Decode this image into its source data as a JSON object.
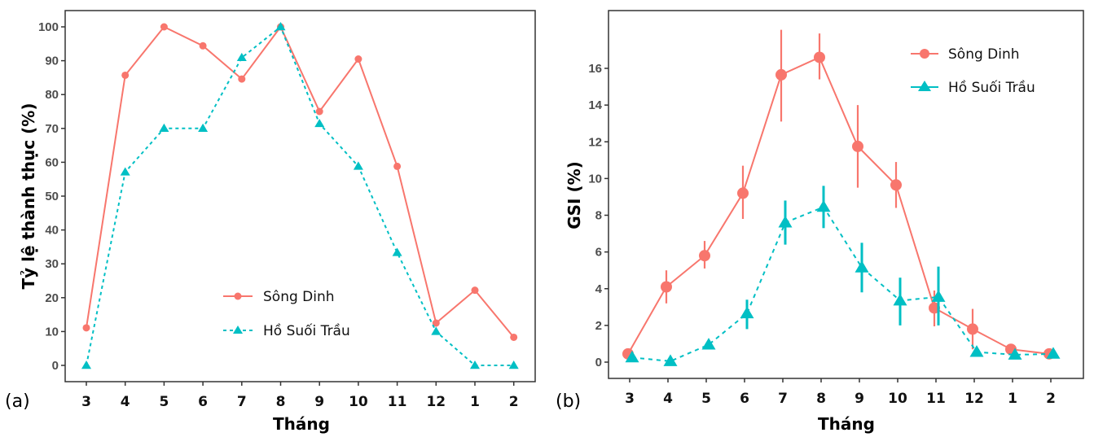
{
  "chart_data": [
    {
      "panel": "(a)",
      "type": "line",
      "title": "",
      "xlabel": "Tháng",
      "ylabel": "Tỷ lệ thành thục (%)",
      "categories": [
        "3",
        "4",
        "5",
        "6",
        "7",
        "8",
        "9",
        "10",
        "11",
        "12",
        "1",
        "2"
      ],
      "ylim": [
        -5,
        105
      ],
      "yticks": [
        0,
        10,
        20,
        30,
        40,
        50,
        60,
        70,
        80,
        90,
        100
      ],
      "grid": false,
      "legend_position": "bottom-center",
      "series": [
        {
          "name": "Sông Dinh",
          "color": "#F8766D",
          "marker": "circle",
          "line": "solid",
          "values": [
            11.1,
            85.7,
            100,
            94.4,
            84.6,
            100,
            75.0,
            90.5,
            58.8,
            12.5,
            22.2,
            8.3
          ]
        },
        {
          "name": "Hồ Suối Trầu",
          "color": "#00BFC4",
          "marker": "triangle",
          "line": "dashed",
          "values": [
            0,
            57.1,
            70.0,
            70.0,
            90.9,
            100,
            71.4,
            58.8,
            33.3,
            10.0,
            0,
            0
          ]
        }
      ]
    },
    {
      "panel": "(b)",
      "type": "line",
      "title": "",
      "xlabel": "Tháng",
      "ylabel": "GSI (%)",
      "categories": [
        "3",
        "4",
        "5",
        "6",
        "7",
        "8",
        "9",
        "10",
        "11",
        "12",
        "1",
        "2"
      ],
      "ylim": [
        -0.9,
        19.2
      ],
      "yticks": [
        0,
        2,
        4,
        6,
        8,
        10,
        12,
        14,
        16
      ],
      "grid": false,
      "legend_position": "top-right",
      "series": [
        {
          "name": "Sông Dinh",
          "color": "#F8766D",
          "marker": "circle",
          "line": "solid",
          "values": [
            0.45,
            4.1,
            5.8,
            9.2,
            15.65,
            16.6,
            11.75,
            9.65,
            2.95,
            1.8,
            0.7,
            0.45
          ],
          "error_low": [
            0.45,
            3.2,
            5.1,
            7.8,
            13.1,
            15.4,
            9.5,
            8.4,
            1.95,
            0.7,
            0.7,
            0.45
          ],
          "error_high": [
            0.45,
            5.0,
            6.6,
            10.7,
            18.1,
            17.9,
            14.0,
            10.9,
            3.9,
            2.9,
            0.7,
            0.45
          ]
        },
        {
          "name": "Hồ Suối Trầu",
          "color": "#00BFC4",
          "marker": "triangle",
          "line": "dashed",
          "values": [
            0.25,
            0.05,
            0.95,
            2.65,
            7.6,
            8.45,
            5.15,
            3.35,
            3.55,
            0.55,
            0.4,
            0.45
          ],
          "error_low": [
            0.25,
            0.05,
            0.95,
            1.8,
            6.4,
            7.3,
            3.8,
            2.0,
            2.0,
            0.55,
            0.4,
            0.45
          ],
          "error_high": [
            0.25,
            0.05,
            0.95,
            3.4,
            8.8,
            9.6,
            6.5,
            4.6,
            5.2,
            0.55,
            0.4,
            0.45
          ]
        }
      ]
    }
  ]
}
